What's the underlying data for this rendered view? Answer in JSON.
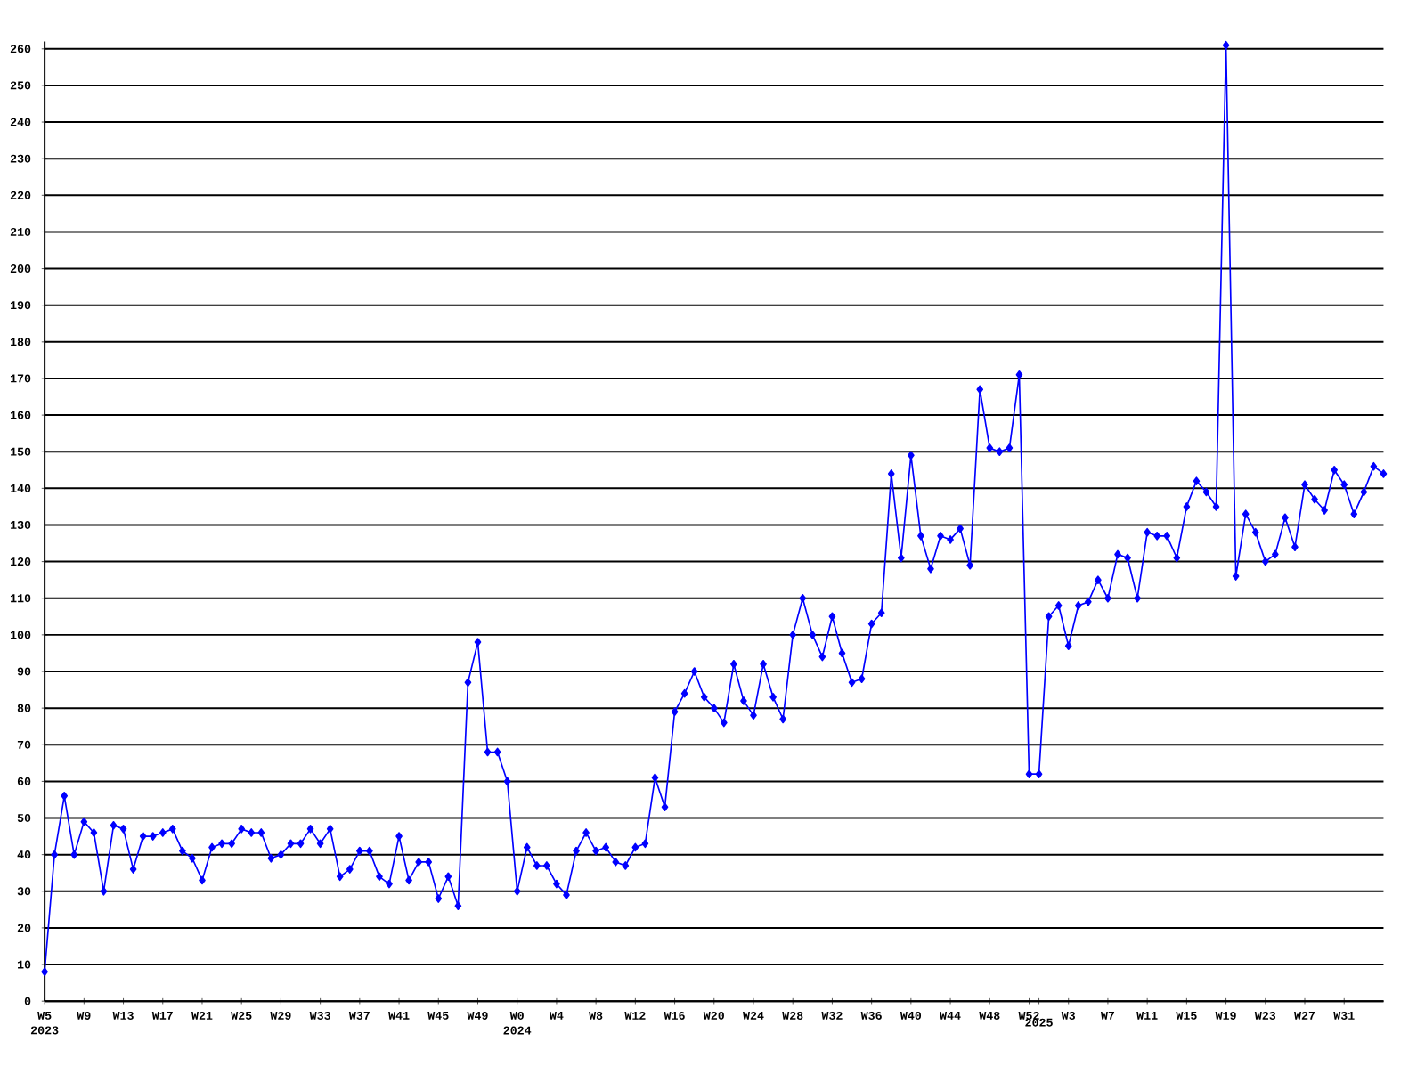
{
  "chart_data": {
    "type": "line",
    "categories": [
      "W5 2023",
      null,
      null,
      null,
      "W9",
      null,
      null,
      null,
      "W13",
      null,
      null,
      null,
      "W17",
      null,
      null,
      null,
      "W21",
      null,
      null,
      null,
      "W25",
      null,
      null,
      null,
      "W29",
      null,
      null,
      null,
      "W33",
      null,
      null,
      null,
      "W37",
      null,
      null,
      null,
      "W41",
      null,
      null,
      null,
      "W45",
      null,
      null,
      null,
      "W49",
      null,
      null,
      null,
      "W0 2024",
      null,
      null,
      null,
      "W4",
      null,
      null,
      null,
      "W8",
      null,
      null,
      null,
      "W12",
      null,
      null,
      null,
      "W16",
      null,
      null,
      null,
      "W20",
      null,
      null,
      null,
      "W24",
      null,
      null,
      null,
      "W28",
      null,
      null,
      null,
      "W32",
      null,
      null,
      null,
      "W36",
      null,
      null,
      null,
      "W40",
      null,
      null,
      null,
      "W44",
      null,
      null,
      null,
      "W48",
      null,
      null,
      null,
      "W52",
      "2025",
      null,
      null,
      "W3",
      null,
      null,
      null,
      "W7",
      null,
      null,
      null,
      "W11",
      null,
      null,
      null,
      "W15",
      null,
      null,
      null,
      "W19",
      null,
      null,
      null,
      "W23",
      null,
      null,
      null,
      "W27",
      null,
      null,
      null,
      "W31",
      null,
      null,
      null,
      null
    ],
    "series": [
      {
        "color": "#0000ff",
        "values": [
          8,
          40,
          56,
          40,
          49,
          46,
          30,
          48,
          47,
          36,
          45,
          45,
          46,
          47,
          41,
          39,
          33,
          42,
          43,
          43,
          47,
          46,
          46,
          39,
          40,
          43,
          43,
          47,
          43,
          47,
          34,
          36,
          41,
          41,
          34,
          32,
          45,
          33,
          38,
          38,
          28,
          34,
          26,
          87,
          98,
          68,
          68,
          60,
          30,
          42,
          37,
          37,
          32,
          29,
          41,
          46,
          41,
          42,
          38,
          37,
          42,
          43,
          61,
          53,
          79,
          84,
          90,
          83,
          80,
          76,
          92,
          82,
          78,
          92,
          83,
          77,
          100,
          110,
          100,
          94,
          105,
          95,
          87,
          88,
          103,
          106,
          144,
          121,
          149,
          127,
          118,
          127,
          126,
          129,
          119,
          167,
          151,
          150,
          151,
          171,
          62,
          62,
          105,
          108,
          97,
          108,
          109,
          115,
          110,
          122,
          121,
          110,
          128,
          127,
          127,
          121,
          135,
          142,
          139,
          135,
          261,
          116,
          133,
          128,
          120,
          122,
          132,
          124,
          141,
          137,
          134,
          145,
          141,
          133,
          139,
          146,
          144
        ]
      }
    ],
    "ylim": [
      0,
      262
    ],
    "yticks": [
      0,
      10,
      20,
      30,
      40,
      50,
      60,
      70,
      80,
      90,
      100,
      110,
      120,
      130,
      140,
      150,
      160,
      170,
      180,
      190,
      200,
      210,
      220,
      230,
      240,
      250,
      260
    ],
    "grid": "y",
    "marker": "diamond",
    "line_style": "solid"
  }
}
